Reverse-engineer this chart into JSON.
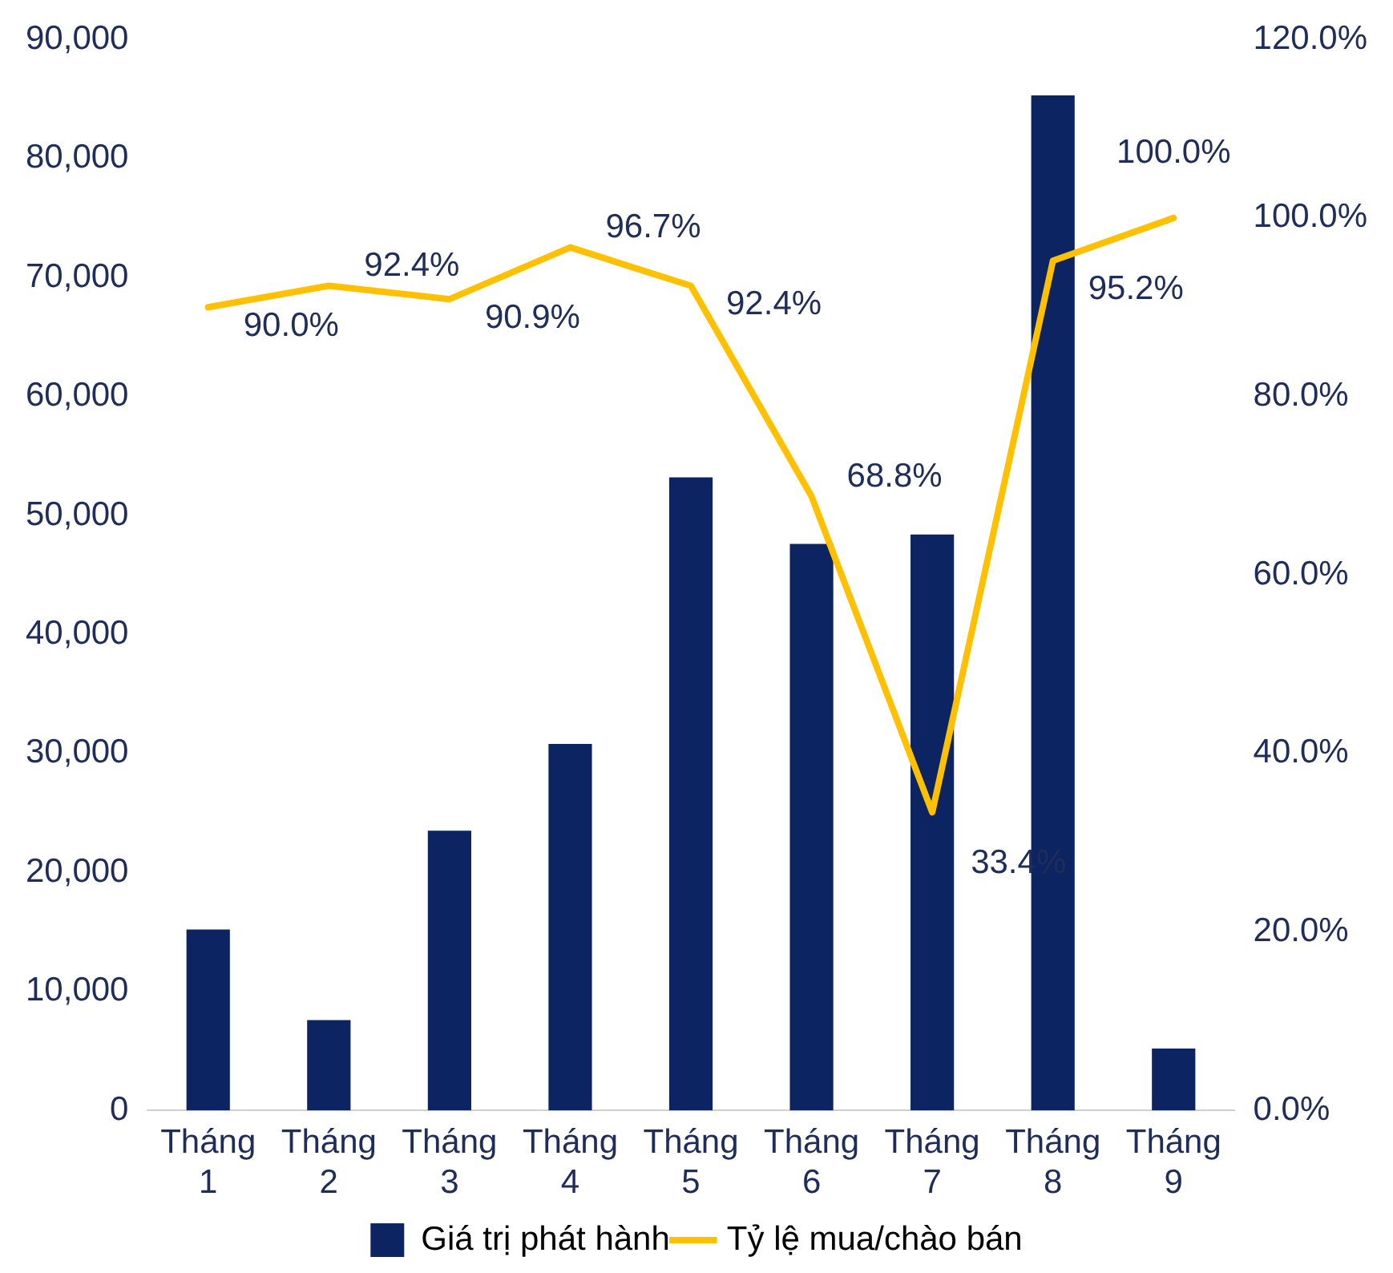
{
  "chart_data": {
    "type": "bar",
    "categories": [
      "Tháng 1",
      "Tháng 2",
      "Tháng 3",
      "Tháng 4",
      "Tháng 5",
      "Tháng 6",
      "Tháng 7",
      "Tháng 8",
      "Tháng 9"
    ],
    "series": [
      {
        "name": "Giá trị phát hành",
        "color": "#0c2461",
        "values": [
          15200,
          7600,
          23500,
          30800,
          53200,
          47600,
          48400,
          85300,
          5200
        ]
      },
      {
        "name": "Tỷ lệ mua/chào bán",
        "type": "line",
        "axis": "y2",
        "color": "#ffc000",
        "values": [
          90.0,
          92.4,
          90.9,
          96.7,
          92.4,
          68.8,
          33.4,
          95.2,
          100.0
        ],
        "value_labels": [
          "90.0%",
          "92.4%",
          "90.9%",
          "96.7%",
          "92.4%",
          "68.8%",
          "33.4%",
          "95.2%",
          "100.0%"
        ]
      }
    ],
    "ylim": [
      0,
      90000
    ],
    "yticks": [
      {
        "value": 0,
        "label": "0"
      },
      {
        "value": 10000,
        "label": "10,000"
      },
      {
        "value": 20000,
        "label": "20,000"
      },
      {
        "value": 30000,
        "label": "30,000"
      },
      {
        "value": 40000,
        "label": "40,000"
      },
      {
        "value": 50000,
        "label": "50,000"
      },
      {
        "value": 60000,
        "label": "60,000"
      },
      {
        "value": 70000,
        "label": "70,000"
      },
      {
        "value": 80000,
        "label": "80,000"
      },
      {
        "value": 90000,
        "label": "90,000"
      }
    ],
    "y2lim": [
      0,
      120
    ],
    "y2ticks": [
      {
        "value": 0,
        "label": "0.0%"
      },
      {
        "value": 20,
        "label": "20.0%"
      },
      {
        "value": 40,
        "label": "40.0%"
      },
      {
        "value": 60,
        "label": "60.0%"
      },
      {
        "value": 80,
        "label": "80.0%"
      },
      {
        "value": 100,
        "label": "100.0%"
      },
      {
        "value": 120,
        "label": "120.0%"
      }
    ],
    "grid": false,
    "legend": "bottom",
    "marker": "none",
    "line_style": "solid"
  }
}
